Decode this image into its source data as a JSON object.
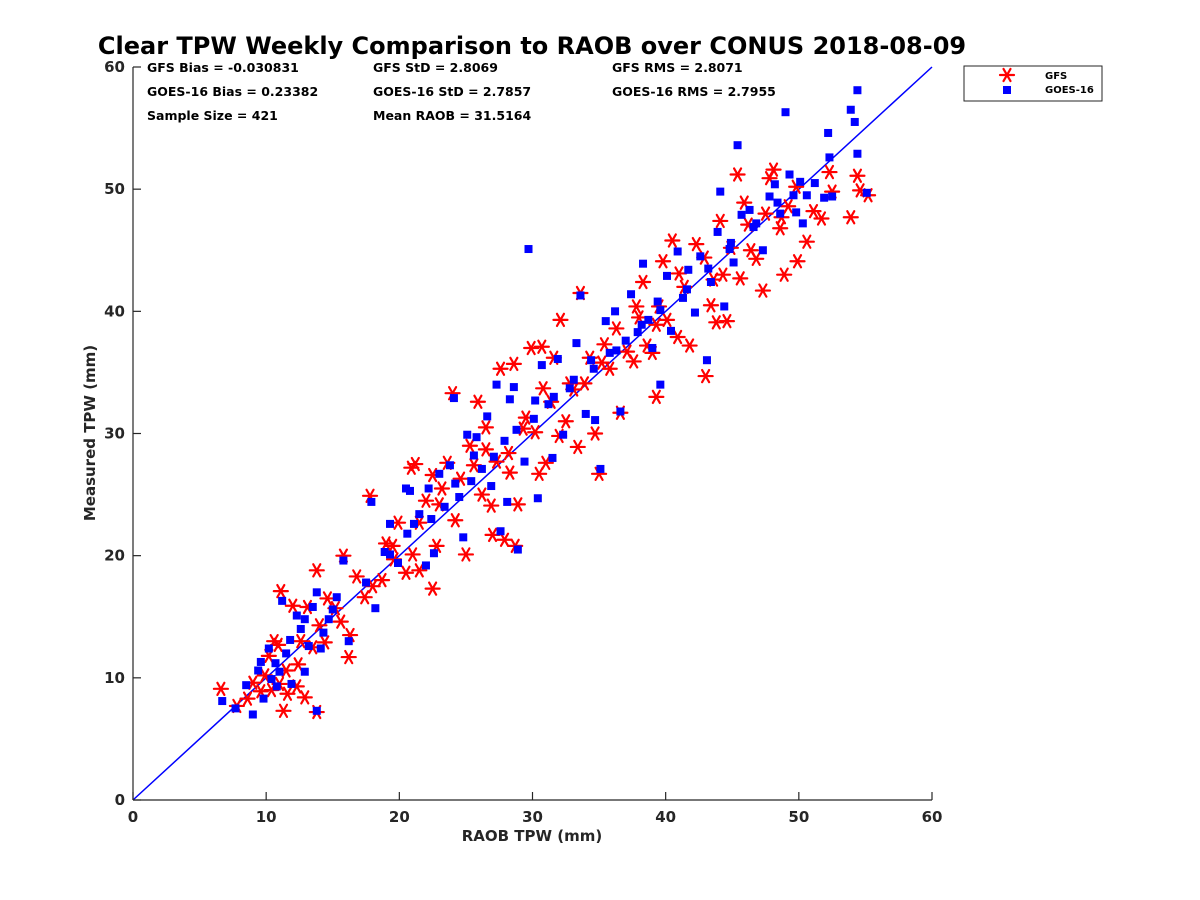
{
  "chart_data": {
    "type": "scatter",
    "title": "Clear TPW Weekly Comparison to RAOB over CONUS 2018-08-09",
    "xlabel": "RAOB TPW (mm)",
    "ylabel": "Measured TPW (mm)",
    "xlim": [
      0,
      60
    ],
    "ylim": [
      0,
      60
    ],
    "xticks": [
      "0",
      "10",
      "20",
      "30",
      "40",
      "50",
      "60"
    ],
    "yticks": [
      "0",
      "10",
      "20",
      "30",
      "40",
      "50",
      "60"
    ],
    "grid": false,
    "legend_position": "top-right",
    "reference_line": {
      "x": [
        0,
        60
      ],
      "y": [
        0,
        60
      ],
      "color": "#0000ff"
    },
    "stats": {
      "gfs_bias": "GFS Bias = -0.030831",
      "goes_bias": "GOES-16 Bias = 0.23382",
      "sample_size": "Sample Size = 421",
      "gfs_std": "GFS StD = 2.8069",
      "goes_std": "GOES-16 StD = 2.7857",
      "mean_raob": "Mean RAOB = 31.5164",
      "gfs_rms": "GFS RMS = 2.8071",
      "goes_rms": "GOES-16 RMS = 2.7955"
    },
    "series": [
      {
        "name": "GFS",
        "marker": "asterisk",
        "color": "#ff0000",
        "points": [
          [
            6.6,
            9.1
          ],
          [
            7.8,
            7.7
          ],
          [
            8.6,
            8.3
          ],
          [
            9.0,
            9.6
          ],
          [
            9.6,
            8.9
          ],
          [
            9.9,
            10.2
          ],
          [
            10.2,
            11.8
          ],
          [
            10.4,
            9.0
          ],
          [
            10.6,
            13.0
          ],
          [
            11.0,
            9.5
          ],
          [
            11.1,
            17.1
          ],
          [
            11.3,
            7.3
          ],
          [
            11.5,
            10.6
          ],
          [
            12.0,
            15.9
          ],
          [
            12.3,
            9.3
          ],
          [
            12.6,
            13.0
          ],
          [
            12.9,
            8.4
          ],
          [
            13.1,
            15.8
          ],
          [
            13.5,
            12.5
          ],
          [
            13.8,
            18.8
          ],
          [
            13.8,
            7.2
          ],
          [
            14.0,
            14.3
          ],
          [
            14.6,
            16.5
          ],
          [
            15.2,
            15.7
          ],
          [
            15.6,
            14.6
          ],
          [
            15.8,
            20.0
          ],
          [
            16.2,
            11.7
          ],
          [
            16.3,
            13.5
          ],
          [
            17.4,
            16.6
          ],
          [
            17.8,
            24.9
          ],
          [
            18.0,
            17.5
          ],
          [
            18.7,
            18.0
          ],
          [
            19.0,
            21.0
          ],
          [
            19.5,
            20.8
          ],
          [
            19.9,
            22.7
          ],
          [
            20.5,
            18.6
          ],
          [
            20.9,
            27.2
          ],
          [
            21.0,
            20.1
          ],
          [
            21.2,
            27.5
          ],
          [
            21.5,
            18.8
          ],
          [
            22.0,
            24.5
          ],
          [
            22.5,
            26.6
          ],
          [
            22.5,
            17.3
          ],
          [
            22.8,
            20.8
          ],
          [
            23.2,
            25.5
          ],
          [
            23.6,
            27.6
          ],
          [
            24.0,
            33.3
          ],
          [
            24.2,
            22.9
          ],
          [
            24.6,
            26.3
          ],
          [
            25.0,
            20.1
          ],
          [
            25.3,
            29.0
          ],
          [
            25.6,
            27.4
          ],
          [
            25.9,
            32.6
          ],
          [
            26.2,
            25.0
          ],
          [
            26.5,
            30.5
          ],
          [
            26.9,
            24.1
          ],
          [
            27.0,
            21.7
          ],
          [
            27.3,
            27.7
          ],
          [
            27.6,
            35.3
          ],
          [
            27.9,
            21.3
          ],
          [
            28.2,
            28.4
          ],
          [
            28.6,
            35.7
          ],
          [
            28.7,
            20.8
          ],
          [
            28.9,
            24.2
          ],
          [
            29.3,
            30.4
          ],
          [
            29.5,
            31.3
          ],
          [
            29.9,
            37.0
          ],
          [
            30.2,
            30.1
          ],
          [
            30.5,
            26.7
          ],
          [
            30.7,
            37.1
          ],
          [
            31.0,
            27.6
          ],
          [
            31.4,
            32.6
          ],
          [
            31.6,
            36.2
          ],
          [
            32.0,
            29.8
          ],
          [
            32.1,
            39.3
          ],
          [
            32.5,
            31.0
          ],
          [
            33.1,
            33.6
          ],
          [
            33.4,
            28.9
          ],
          [
            33.6,
            41.5
          ],
          [
            33.9,
            34.1
          ],
          [
            34.3,
            36.2
          ],
          [
            34.7,
            30.0
          ],
          [
            35.0,
            26.7
          ],
          [
            35.4,
            37.3
          ],
          [
            35.8,
            35.3
          ],
          [
            36.3,
            38.6
          ],
          [
            36.6,
            31.7
          ],
          [
            37.1,
            36.7
          ],
          [
            37.6,
            35.9
          ],
          [
            38.0,
            39.5
          ],
          [
            38.3,
            42.4
          ],
          [
            38.6,
            37.2
          ],
          [
            39.0,
            36.6
          ],
          [
            39.3,
            33.0
          ],
          [
            39.5,
            40.4
          ],
          [
            39.8,
            44.1
          ],
          [
            40.1,
            39.3
          ],
          [
            40.5,
            45.8
          ],
          [
            40.9,
            37.9
          ],
          [
            41.4,
            42.0
          ],
          [
            41.8,
            37.2
          ],
          [
            42.3,
            45.5
          ],
          [
            42.9,
            44.4
          ],
          [
            43.0,
            34.7
          ],
          [
            43.4,
            40.5
          ],
          [
            43.8,
            39.1
          ],
          [
            44.1,
            47.4
          ],
          [
            44.3,
            43.0
          ],
          [
            44.6,
            39.2
          ],
          [
            44.9,
            45.2
          ],
          [
            45.4,
            51.2
          ],
          [
            45.6,
            42.7
          ],
          [
            45.9,
            48.9
          ],
          [
            46.2,
            47.1
          ],
          [
            46.8,
            44.3
          ],
          [
            47.3,
            41.7
          ],
          [
            47.5,
            48.0
          ],
          [
            47.8,
            50.9
          ],
          [
            48.1,
            51.6
          ],
          [
            48.6,
            46.8
          ],
          [
            48.9,
            43.0
          ],
          [
            49.2,
            48.6
          ],
          [
            49.8,
            50.2
          ],
          [
            49.9,
            44.1
          ],
          [
            50.6,
            45.7
          ],
          [
            51.1,
            48.2
          ],
          [
            51.7,
            47.6
          ],
          [
            52.3,
            51.4
          ],
          [
            52.5,
            49.8
          ],
          [
            53.9,
            47.7
          ],
          [
            54.4,
            51.1
          ],
          [
            54.6,
            49.9
          ],
          [
            55.2,
            49.5
          ],
          [
            10.9,
            12.7
          ],
          [
            11.6,
            8.7
          ],
          [
            12.4,
            11.1
          ],
          [
            14.4,
            12.9
          ],
          [
            16.8,
            18.3
          ],
          [
            19.6,
            19.7
          ],
          [
            21.5,
            22.7
          ],
          [
            23.0,
            24.2
          ],
          [
            26.5,
            28.7
          ],
          [
            28.3,
            26.8
          ],
          [
            30.8,
            33.7
          ],
          [
            32.8,
            34.1
          ],
          [
            35.2,
            35.8
          ],
          [
            37.8,
            40.4
          ],
          [
            39.3,
            38.9
          ],
          [
            41.0,
            43.1
          ],
          [
            43.6,
            42.6
          ],
          [
            46.4,
            45.0
          ],
          [
            48.7,
            47.7
          ]
        ]
      },
      {
        "name": "GOES-16",
        "marker": "square",
        "color": "#0000ff",
        "points": [
          [
            6.7,
            8.1
          ],
          [
            7.7,
            7.5
          ],
          [
            8.5,
            9.4
          ],
          [
            9.0,
            7.0
          ],
          [
            9.4,
            10.6
          ],
          [
            9.8,
            8.3
          ],
          [
            10.2,
            12.4
          ],
          [
            10.4,
            9.9
          ],
          [
            10.7,
            11.2
          ],
          [
            11.0,
            10.5
          ],
          [
            11.2,
            16.3
          ],
          [
            11.5,
            12.0
          ],
          [
            11.9,
            9.5
          ],
          [
            12.3,
            15.1
          ],
          [
            12.6,
            14.0
          ],
          [
            12.9,
            10.5
          ],
          [
            13.2,
            12.6
          ],
          [
            13.5,
            15.8
          ],
          [
            13.8,
            17.0
          ],
          [
            13.8,
            7.3
          ],
          [
            14.3,
            13.7
          ],
          [
            14.7,
            14.8
          ],
          [
            15.3,
            16.6
          ],
          [
            15.8,
            19.6
          ],
          [
            16.2,
            13.0
          ],
          [
            17.5,
            17.8
          ],
          [
            17.9,
            24.4
          ],
          [
            18.2,
            15.7
          ],
          [
            18.9,
            20.3
          ],
          [
            19.3,
            22.6
          ],
          [
            19.9,
            19.4
          ],
          [
            20.5,
            25.5
          ],
          [
            20.8,
            25.3
          ],
          [
            21.1,
            22.6
          ],
          [
            21.5,
            23.4
          ],
          [
            22.0,
            19.2
          ],
          [
            22.2,
            25.5
          ],
          [
            22.6,
            20.2
          ],
          [
            23.0,
            26.7
          ],
          [
            23.4,
            24.0
          ],
          [
            23.8,
            27.4
          ],
          [
            24.1,
            32.9
          ],
          [
            24.5,
            24.8
          ],
          [
            24.8,
            21.5
          ],
          [
            25.1,
            29.9
          ],
          [
            25.4,
            26.1
          ],
          [
            25.8,
            29.7
          ],
          [
            26.2,
            27.1
          ],
          [
            26.6,
            31.4
          ],
          [
            26.9,
            25.7
          ],
          [
            27.3,
            34.0
          ],
          [
            27.6,
            22.0
          ],
          [
            27.9,
            29.4
          ],
          [
            28.1,
            24.4
          ],
          [
            28.3,
            32.8
          ],
          [
            28.6,
            33.8
          ],
          [
            28.9,
            20.5
          ],
          [
            29.4,
            27.7
          ],
          [
            29.7,
            45.1
          ],
          [
            30.2,
            32.7
          ],
          [
            30.4,
            24.7
          ],
          [
            30.7,
            35.6
          ],
          [
            31.2,
            32.4
          ],
          [
            31.5,
            28.0
          ],
          [
            31.9,
            36.1
          ],
          [
            32.3,
            29.9
          ],
          [
            32.8,
            33.7
          ],
          [
            33.3,
            37.4
          ],
          [
            33.6,
            41.3
          ],
          [
            34.0,
            31.6
          ],
          [
            34.4,
            36.0
          ],
          [
            34.7,
            31.1
          ],
          [
            35.1,
            27.1
          ],
          [
            35.5,
            39.2
          ],
          [
            35.8,
            36.6
          ],
          [
            36.2,
            40.0
          ],
          [
            36.6,
            31.8
          ],
          [
            37.0,
            37.6
          ],
          [
            37.4,
            41.4
          ],
          [
            37.9,
            38.3
          ],
          [
            38.3,
            43.9
          ],
          [
            38.7,
            39.3
          ],
          [
            39.0,
            37.0
          ],
          [
            39.4,
            40.8
          ],
          [
            39.6,
            34.0
          ],
          [
            40.1,
            42.9
          ],
          [
            40.4,
            38.4
          ],
          [
            40.9,
            44.9
          ],
          [
            41.3,
            41.1
          ],
          [
            41.7,
            43.4
          ],
          [
            42.2,
            39.9
          ],
          [
            42.6,
            44.5
          ],
          [
            43.1,
            36.0
          ],
          [
            43.4,
            42.4
          ],
          [
            43.9,
            46.5
          ],
          [
            44.1,
            49.8
          ],
          [
            44.4,
            40.4
          ],
          [
            44.8,
            45.1
          ],
          [
            45.1,
            44.0
          ],
          [
            45.4,
            53.6
          ],
          [
            45.7,
            47.9
          ],
          [
            46.3,
            48.3
          ],
          [
            46.8,
            47.2
          ],
          [
            47.3,
            45.0
          ],
          [
            47.8,
            49.4
          ],
          [
            48.2,
            50.4
          ],
          [
            48.6,
            48.0
          ],
          [
            49.0,
            56.3
          ],
          [
            49.3,
            51.2
          ],
          [
            49.6,
            49.5
          ],
          [
            49.8,
            48.1
          ],
          [
            50.3,
            47.2
          ],
          [
            50.6,
            49.5
          ],
          [
            51.2,
            50.5
          ],
          [
            51.9,
            49.3
          ],
          [
            52.2,
            54.6
          ],
          [
            52.3,
            52.6
          ],
          [
            52.5,
            49.4
          ],
          [
            53.9,
            56.5
          ],
          [
            54.2,
            55.5
          ],
          [
            54.4,
            52.9
          ],
          [
            54.4,
            58.1
          ],
          [
            55.1,
            49.7
          ],
          [
            9.6,
            11.3
          ],
          [
            10.8,
            9.3
          ],
          [
            11.8,
            13.1
          ],
          [
            12.9,
            14.8
          ],
          [
            14.1,
            12.4
          ],
          [
            15.0,
            15.6
          ],
          [
            19.3,
            20.1
          ],
          [
            20.6,
            21.8
          ],
          [
            22.4,
            23.0
          ],
          [
            24.2,
            25.9
          ],
          [
            25.6,
            28.2
          ],
          [
            27.1,
            28.1
          ],
          [
            28.8,
            30.3
          ],
          [
            30.1,
            31.2
          ],
          [
            31.6,
            33.0
          ],
          [
            33.1,
            34.4
          ],
          [
            34.6,
            35.3
          ],
          [
            36.3,
            36.8
          ],
          [
            38.2,
            38.9
          ],
          [
            39.6,
            40.1
          ],
          [
            41.6,
            41.8
          ],
          [
            43.2,
            43.5
          ],
          [
            44.9,
            45.6
          ],
          [
            46.6,
            46.9
          ],
          [
            48.4,
            48.9
          ],
          [
            50.1,
            50.6
          ]
        ]
      }
    ]
  }
}
